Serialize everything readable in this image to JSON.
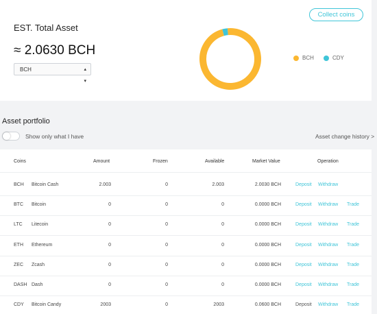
{
  "summary": {
    "title": "EST. Total Asset",
    "total_value": "≈ 2.0630 BCH",
    "currency_select": "BCH",
    "collect_button": "Collect coins"
  },
  "chart_data": {
    "type": "pie",
    "categories": [
      "BCH",
      "CDY"
    ],
    "values": [
      2.003,
      0.06
    ],
    "colors": [
      "#fbb731",
      "#3fc5d8"
    ],
    "legend_placement": "right"
  },
  "portfolio": {
    "title": "Asset portfolio",
    "toggle_label": "Show only what I have",
    "history_link": "Asset change history >"
  },
  "table": {
    "headers": {
      "coins": "Coins",
      "amount": "Amount",
      "frozen": "Frozen",
      "available": "Available",
      "market_value": "Market Value",
      "operation": "Operation"
    },
    "rows": [
      {
        "symbol": "BCH",
        "name": "Bitcoin Cash",
        "amount": "2.003",
        "frozen": "0",
        "available": "2.003",
        "market_value": "2.0030 BCH",
        "deposit": "Deposit",
        "withdraw": "Withdraw",
        "trade": "",
        "deposit_active": true
      },
      {
        "symbol": "BTC",
        "name": "Bitcoin",
        "amount": "0",
        "frozen": "0",
        "available": "0",
        "market_value": "0.0000 BCH",
        "deposit": "Deposit",
        "withdraw": "Withdraw",
        "trade": "Trade",
        "deposit_active": true
      },
      {
        "symbol": "LTC",
        "name": "Litecoin",
        "amount": "0",
        "frozen": "0",
        "available": "0",
        "market_value": "0.0000 BCH",
        "deposit": "Deposit",
        "withdraw": "Withdraw",
        "trade": "Trade",
        "deposit_active": true
      },
      {
        "symbol": "ETH",
        "name": "Ethereum",
        "amount": "0",
        "frozen": "0",
        "available": "0",
        "market_value": "0.0000 BCH",
        "deposit": "Deposit",
        "withdraw": "Withdraw",
        "trade": "Trade",
        "deposit_active": true
      },
      {
        "symbol": "ZEC",
        "name": "Zcash",
        "amount": "0",
        "frozen": "0",
        "available": "0",
        "market_value": "0.0000 BCH",
        "deposit": "Deposit",
        "withdraw": "Withdraw",
        "trade": "Trade",
        "deposit_active": true
      },
      {
        "symbol": "DASH",
        "name": "Dash",
        "amount": "0",
        "frozen": "0",
        "available": "0",
        "market_value": "0.0000 BCH",
        "deposit": "Deposit",
        "withdraw": "Withdraw",
        "trade": "Trade",
        "deposit_active": true
      },
      {
        "symbol": "CDY",
        "name": "Bitcoin Candy",
        "amount": "2003",
        "frozen": "0",
        "available": "2003",
        "market_value": "0.0600 BCH",
        "deposit": "Deposit",
        "withdraw": "Withdraw",
        "trade": "Trade",
        "deposit_active": false
      }
    ]
  }
}
